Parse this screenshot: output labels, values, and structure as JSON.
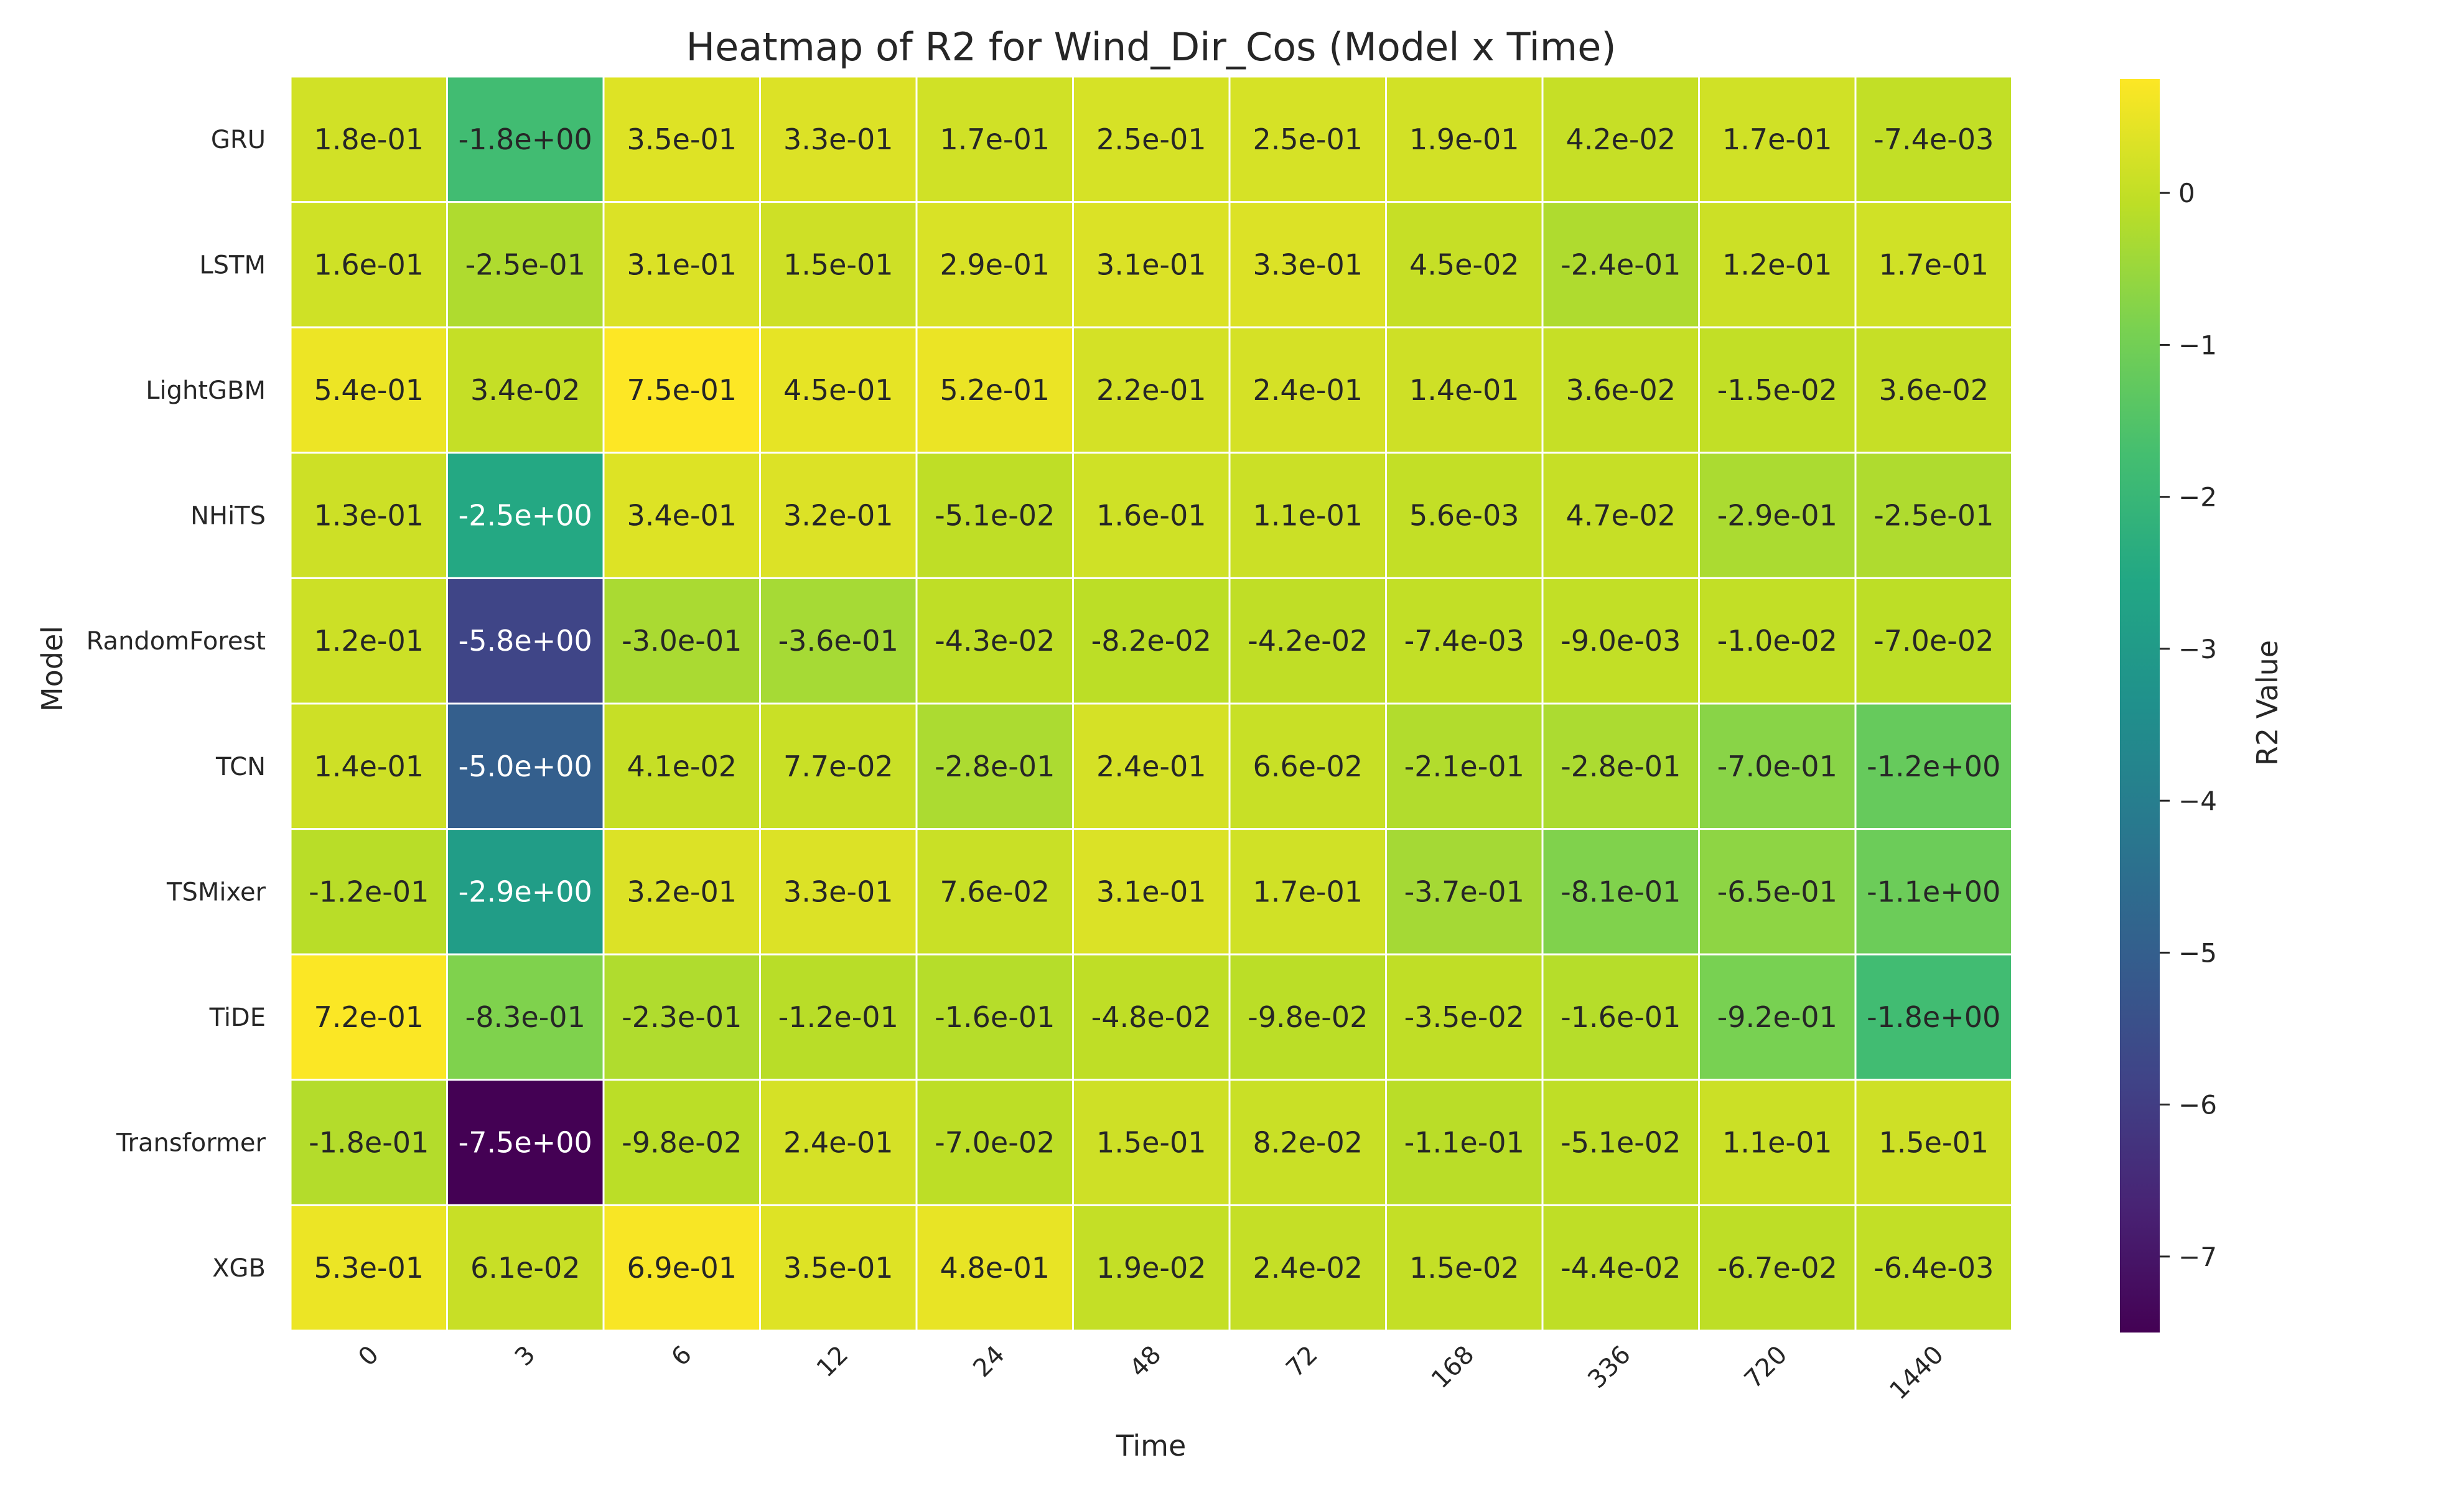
{
  "chart_data": {
    "type": "heatmap",
    "title": "Heatmap of R2 for Wind_Dir_Cos (Model x Time)",
    "xlabel": "Time",
    "ylabel": "Model",
    "colorbar_label": "R2 Value",
    "colormap": "viridis",
    "color_range": [
      -7.5,
      0.75
    ],
    "colorbar_ticks": [
      0,
      -1,
      -2,
      -3,
      -4,
      -5,
      -6,
      -7
    ],
    "colorbar_tick_labels": [
      "0",
      "−1",
      "−2",
      "−3",
      "−4",
      "−5",
      "−6",
      "−7"
    ],
    "x_categories": [
      "0",
      "3",
      "6",
      "12",
      "24",
      "48",
      "72",
      "168",
      "336",
      "720",
      "1440"
    ],
    "y_categories": [
      "GRU",
      "LSTM",
      "LightGBM",
      "NHiTS",
      "RandomForest",
      "TCN",
      "TSMixer",
      "TiDE",
      "Transformer",
      "XGB"
    ],
    "labels": [
      [
        "1.8e-01",
        "-1.8e+00",
        "3.5e-01",
        "3.3e-01",
        "1.7e-01",
        "2.5e-01",
        "2.5e-01",
        "1.9e-01",
        "4.2e-02",
        "1.7e-01",
        "-7.4e-03"
      ],
      [
        "1.6e-01",
        "-2.5e-01",
        "3.1e-01",
        "1.5e-01",
        "2.9e-01",
        "3.1e-01",
        "3.3e-01",
        "4.5e-02",
        "-2.4e-01",
        "1.2e-01",
        "1.7e-01"
      ],
      [
        "5.4e-01",
        "3.4e-02",
        "7.5e-01",
        "4.5e-01",
        "5.2e-01",
        "2.2e-01",
        "2.4e-01",
        "1.4e-01",
        "3.6e-02",
        "-1.5e-02",
        "3.6e-02"
      ],
      [
        "1.3e-01",
        "-2.5e+00",
        "3.4e-01",
        "3.2e-01",
        "-5.1e-02",
        "1.6e-01",
        "1.1e-01",
        "5.6e-03",
        "4.7e-02",
        "-2.9e-01",
        "-2.5e-01"
      ],
      [
        "1.2e-01",
        "-5.8e+00",
        "-3.0e-01",
        "-3.6e-01",
        "-4.3e-02",
        "-8.2e-02",
        "-4.2e-02",
        "-7.4e-03",
        "-9.0e-03",
        "-1.0e-02",
        "-7.0e-02"
      ],
      [
        "1.4e-01",
        "-5.0e+00",
        "4.1e-02",
        "7.7e-02",
        "-2.8e-01",
        "2.4e-01",
        "6.6e-02",
        "-2.1e-01",
        "-2.8e-01",
        "-7.0e-01",
        "-1.2e+00"
      ],
      [
        "-1.2e-01",
        "-2.9e+00",
        "3.2e-01",
        "3.3e-01",
        "7.6e-02",
        "3.1e-01",
        "1.7e-01",
        "-3.7e-01",
        "-8.1e-01",
        "-6.5e-01",
        "-1.1e+00"
      ],
      [
        "7.2e-01",
        "-8.3e-01",
        "-2.3e-01",
        "-1.2e-01",
        "-1.6e-01",
        "-4.8e-02",
        "-9.8e-02",
        "-3.5e-02",
        "-1.6e-01",
        "-9.2e-01",
        "-1.8e+00"
      ],
      [
        "-1.8e-01",
        "-7.5e+00",
        "-9.8e-02",
        "2.4e-01",
        "-7.0e-02",
        "1.5e-01",
        "8.2e-02",
        "-1.1e-01",
        "-5.1e-02",
        "1.1e-01",
        "1.5e-01"
      ],
      [
        "5.3e-01",
        "6.1e-02",
        "6.9e-01",
        "3.5e-01",
        "4.8e-01",
        "1.9e-02",
        "2.4e-02",
        "1.5e-02",
        "-4.4e-02",
        "-6.7e-02",
        "-6.4e-03"
      ]
    ]
  }
}
